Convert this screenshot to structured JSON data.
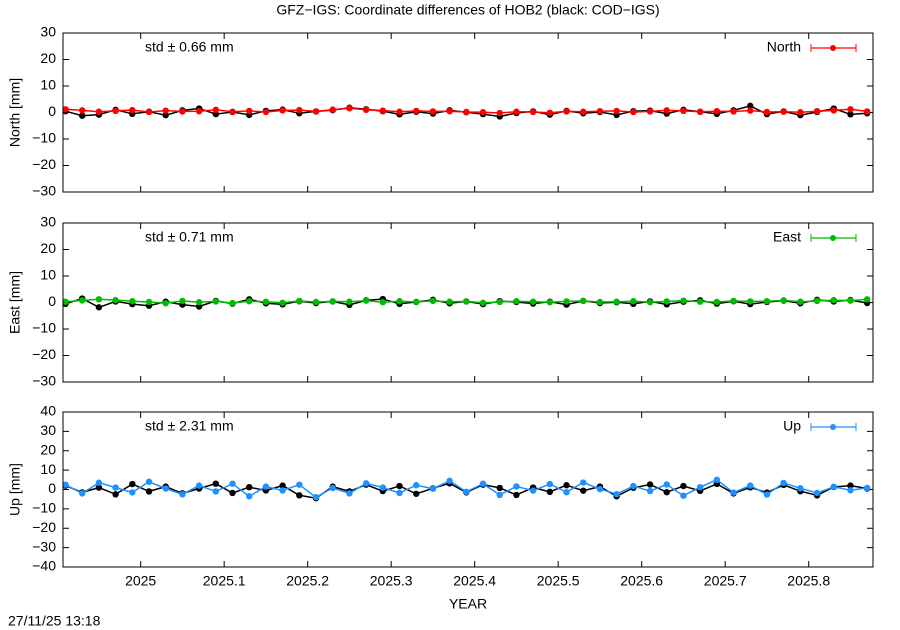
{
  "title": "GFZ−IGS: Coordinate differences of HOB2 (black: COD−IGS)",
  "timestamp": "27/11/25 13:18",
  "chart_data": [
    {
      "type": "line",
      "ylabel": "North [mm]",
      "annotation": "std ± 0.66 mm",
      "annotation_color": "#ff0000",
      "x": [
        2024.91,
        2024.93,
        2024.95,
        2024.97,
        2024.99,
        2025.01,
        2025.03,
        2025.05,
        2025.07,
        2025.09,
        2025.11,
        2025.13,
        2025.15,
        2025.17,
        2025.19,
        2025.21,
        2025.23,
        2025.25,
        2025.27,
        2025.29,
        2025.31,
        2025.33,
        2025.35,
        2025.37,
        2025.39,
        2025.41,
        2025.43,
        2025.45,
        2025.47,
        2025.49,
        2025.51,
        2025.53,
        2025.55,
        2025.57,
        2025.59,
        2025.61,
        2025.63,
        2025.65,
        2025.67,
        2025.69,
        2025.71,
        2025.73,
        2025.75,
        2025.77,
        2025.79,
        2025.81,
        2025.83,
        2025.85,
        2025.87
      ],
      "series": [
        {
          "color": "#000000",
          "values": [
            0.5,
            -1.2,
            -0.8,
            1.0,
            -0.5,
            0.3,
            -1.0,
            0.8,
            1.5,
            -0.6,
            0.2,
            -0.9,
            0.6,
            1.1,
            -0.3,
            0.4,
            0.9,
            1.8,
            1.2,
            0.5,
            -0.7,
            0.3,
            -0.4,
            0.8,
            0.1,
            -0.6,
            -1.5,
            -0.2,
            0.4,
            -0.8,
            0.6,
            -0.3,
            0.2,
            -0.9,
            0.5,
            0.7,
            -0.4,
            1.0,
            0.3,
            -0.5,
            0.8,
            2.5,
            -0.6,
            0.4,
            -1.0,
            0.2,
            1.5,
            -0.7,
            -0.3
          ]
        },
        {
          "name": "North",
          "color": "#ff0000",
          "values": [
            1.2,
            0.8,
            0.3,
            0.6,
            0.9,
            0.2,
            0.7,
            0.4,
            0.5,
            1.0,
            0.3,
            0.6,
            0.2,
            0.8,
            0.9,
            0.4,
            1.1,
            1.6,
            1.0,
            0.7,
            0.3,
            0.6,
            0.4,
            0.5,
            0.2,
            0.1,
            -0.2,
            0.3,
            0.2,
            -0.1,
            0.4,
            0.3,
            0.5,
            0.6,
            0.2,
            0.4,
            0.8,
            0.6,
            0.3,
            0.5,
            0.4,
            0.7,
            0.2,
            0.3,
            0.1,
            0.5,
            0.8,
            1.2,
            0.4
          ]
        }
      ],
      "xlim": [
        2024.907,
        2025.877
      ],
      "xticks": [
        2025,
        2025.1,
        2025.2,
        2025.3,
        2025.4,
        2025.5,
        2025.6,
        2025.7,
        2025.8
      ],
      "ylim": [
        -30,
        30
      ],
      "yticks": [
        {
          "value": -30,
          "label": "−30"
        },
        {
          "value": -20,
          "label": "−20"
        },
        {
          "value": -10,
          "label": "−10"
        },
        0,
        10,
        20,
        30
      ],
      "legend": "top-right"
    },
    {
      "type": "line",
      "ylabel": "East [mm]",
      "annotation": "std ± 0.71 mm",
      "annotation_color": "#00bb00",
      "x": [
        2024.91,
        2024.93,
        2024.95,
        2024.97,
        2024.99,
        2025.01,
        2025.03,
        2025.05,
        2025.07,
        2025.09,
        2025.11,
        2025.13,
        2025.15,
        2025.17,
        2025.19,
        2025.21,
        2025.23,
        2025.25,
        2025.27,
        2025.29,
        2025.31,
        2025.33,
        2025.35,
        2025.37,
        2025.39,
        2025.41,
        2025.43,
        2025.45,
        2025.47,
        2025.49,
        2025.51,
        2025.53,
        2025.55,
        2025.57,
        2025.59,
        2025.61,
        2025.63,
        2025.65,
        2025.67,
        2025.69,
        2025.71,
        2025.73,
        2025.75,
        2025.77,
        2025.79,
        2025.81,
        2025.83,
        2025.85,
        2025.87
      ],
      "series": [
        {
          "color": "#000000",
          "values": [
            -0.5,
            1.5,
            -1.8,
            0.4,
            -0.6,
            -1.2,
            0.3,
            -0.8,
            -1.5,
            0.6,
            -0.4,
            1.2,
            -0.3,
            -0.7,
            0.5,
            -0.2,
            0.4,
            -0.9,
            0.8,
            1.3,
            -0.5,
            0.2,
            1.0,
            -0.3,
            0.4,
            -0.6,
            0.5,
            0.2,
            -0.4,
            0.3,
            -0.8,
            0.6,
            -0.2,
            0.1,
            -0.5,
            0.4,
            -0.7,
            0.3,
            0.8,
            -0.4,
            0.5,
            -0.6,
            0.2,
            0.7,
            -0.3,
            1.0,
            0.4,
            0.9,
            -0.2
          ]
        },
        {
          "name": "East",
          "color": "#00bb00",
          "values": [
            0.3,
            0.8,
            1.2,
            0.9,
            0.5,
            0.2,
            -0.3,
            0.6,
            0.1,
            0.4,
            -0.2,
            0.5,
            0.3,
            -0.1,
            0.6,
            0.2,
            0.4,
            0.3,
            0.7,
            0.1,
            0.5,
            0.2,
            0.6,
            0.3,
            0.4,
            -0.1,
            0.2,
            0.5,
            0.3,
            0.1,
            0.4,
            0.6,
            0.2,
            0.3,
            0.5,
            0.1,
            0.4,
            0.7,
            0.3,
            0.2,
            0.6,
            0.4,
            0.5,
            0.8,
            0.3,
            0.6,
            0.9,
            0.7,
            1.2
          ]
        }
      ],
      "xlim": [
        2024.907,
        2025.877
      ],
      "xticks": [
        2025,
        2025.1,
        2025.2,
        2025.3,
        2025.4,
        2025.5,
        2025.6,
        2025.7,
        2025.8
      ],
      "ylim": [
        -30,
        30
      ],
      "yticks": [
        {
          "value": -30,
          "label": "−30"
        },
        {
          "value": -20,
          "label": "−20"
        },
        {
          "value": -10,
          "label": "−10"
        },
        0,
        10,
        20,
        30
      ],
      "legend": "top-right"
    },
    {
      "type": "line",
      "ylabel": "Up [mm]",
      "xlabel": "YEAR",
      "annotation": "std ± 2.31 mm",
      "annotation_color": "#1e90ff",
      "x": [
        2024.91,
        2024.93,
        2024.95,
        2024.97,
        2024.99,
        2025.01,
        2025.03,
        2025.05,
        2025.07,
        2025.09,
        2025.11,
        2025.13,
        2025.15,
        2025.17,
        2025.19,
        2025.21,
        2025.23,
        2025.25,
        2025.27,
        2025.29,
        2025.31,
        2025.33,
        2025.35,
        2025.37,
        2025.39,
        2025.41,
        2025.43,
        2025.45,
        2025.47,
        2025.49,
        2025.51,
        2025.53,
        2025.55,
        2025.57,
        2025.59,
        2025.61,
        2025.63,
        2025.65,
        2025.67,
        2025.69,
        2025.71,
        2025.73,
        2025.75,
        2025.77,
        2025.79,
        2025.81,
        2025.83,
        2025.85,
        2025.87
      ],
      "series": [
        {
          "color": "#000000",
          "values": [
            2.0,
            -1.5,
            1.0,
            -2.5,
            2.8,
            -1.0,
            1.5,
            -2.0,
            0.5,
            3.0,
            -1.8,
            1.2,
            -0.5,
            2.0,
            -3.0,
            -4.5,
            1.5,
            -1.0,
            2.5,
            -0.8,
            1.8,
            -2.2,
            0.6,
            3.2,
            -1.5,
            2.5,
            0.8,
            -2.8,
            1.0,
            -1.2,
            2.2,
            -0.6,
            1.5,
            -3.5,
            0.9,
            2.6,
            -1.4,
            1.8,
            -0.7,
            2.9,
            -2.0,
            1.1,
            -1.6,
            2.4,
            -0.9,
            -3.0,
            1.3,
            2.0,
            0.5
          ]
        },
        {
          "name": "Up",
          "color": "#1e90ff",
          "values": [
            2.5,
            -2.0,
            3.5,
            1.0,
            -1.5,
            4.0,
            0.5,
            -2.5,
            2.0,
            -1.0,
            3.0,
            -3.5,
            1.5,
            -0.5,
            2.5,
            -4.0,
            0.8,
            -2.0,
            3.2,
            1.0,
            -1.8,
            2.2,
            0.4,
            4.5,
            -1.2,
            3.0,
            -2.8,
            1.6,
            -0.6,
            2.8,
            -1.4,
            3.6,
            0.2,
            -2.4,
            1.8,
            -0.8,
            2.6,
            -3.2,
            1.2,
            5.0,
            -1.6,
            2.0,
            -2.6,
            3.4,
            0.6,
            -1.8,
            1.4,
            -0.4,
            0.8
          ]
        }
      ],
      "xlim": [
        2024.907,
        2025.877
      ],
      "xticks": [
        2025,
        2025.1,
        2025.2,
        2025.3,
        2025.4,
        2025.5,
        2025.6,
        2025.7,
        2025.8
      ],
      "ylim": [
        -40,
        40
      ],
      "yticks": [
        {
          "value": -40,
          "label": "−40"
        },
        {
          "value": -30,
          "label": "−30"
        },
        {
          "value": -20,
          "label": "−20"
        },
        {
          "value": -10,
          "label": "−10"
        },
        0,
        10,
        20,
        30,
        40
      ],
      "legend": "top-right"
    }
  ]
}
